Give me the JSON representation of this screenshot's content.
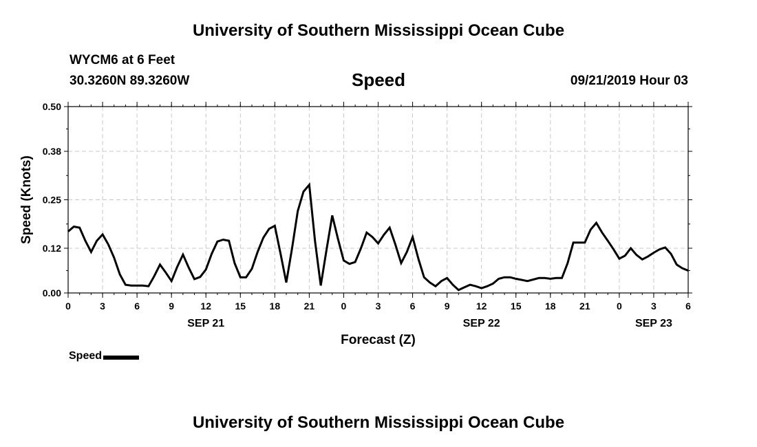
{
  "header": {
    "title": "University of Southern Mississippi Ocean Cube",
    "station": "WYCM6 at 6 Feet",
    "coords": "30.3260N 89.3260W",
    "variable": "Speed",
    "datetime": "09/21/2019 Hour 03"
  },
  "footer": {
    "title": "University of Southern Mississippi Ocean Cube"
  },
  "chart_data": {
    "type": "line",
    "title": "Speed",
    "xlabel": "Forecast (Z)",
    "ylabel": "Speed (Knots)",
    "ylim": [
      0,
      0.5
    ],
    "yticks": [
      "0.00",
      "0.12",
      "0.25",
      "0.38",
      "0.50"
    ],
    "xlim": [
      0,
      54
    ],
    "xticks": [
      {
        "x": 0,
        "label": "0"
      },
      {
        "x": 3,
        "label": "3"
      },
      {
        "x": 6,
        "label": "6"
      },
      {
        "x": 9,
        "label": "9"
      },
      {
        "x": 12,
        "label": "12"
      },
      {
        "x": 15,
        "label": "15"
      },
      {
        "x": 18,
        "label": "18"
      },
      {
        "x": 21,
        "label": "21"
      },
      {
        "x": 24,
        "label": "0"
      },
      {
        "x": 27,
        "label": "3"
      },
      {
        "x": 30,
        "label": "6"
      },
      {
        "x": 33,
        "label": "9"
      },
      {
        "x": 36,
        "label": "12"
      },
      {
        "x": 39,
        "label": "15"
      },
      {
        "x": 42,
        "label": "18"
      },
      {
        "x": 45,
        "label": "21"
      },
      {
        "x": 48,
        "label": "0"
      },
      {
        "x": 51,
        "label": "3"
      },
      {
        "x": 54,
        "label": "6"
      }
    ],
    "date_labels": [
      {
        "x": 12,
        "label": "SEP 21"
      },
      {
        "x": 36,
        "label": "SEP 22"
      },
      {
        "x": 51,
        "label": "SEP 23"
      }
    ],
    "grid": true,
    "series": [
      {
        "name": "Speed",
        "color": "#000000",
        "x": [
          0,
          0.5,
          1,
          1.5,
          2,
          2.5,
          3,
          3.5,
          4,
          4.5,
          5,
          5.5,
          6,
          6.5,
          7,
          7.5,
          8,
          8.5,
          9,
          9.5,
          10,
          10.5,
          11,
          11.5,
          12,
          12.5,
          13,
          13.5,
          14,
          14.5,
          15,
          15.5,
          16,
          16.5,
          17,
          17.5,
          18,
          18.5,
          19,
          19.5,
          20,
          20.5,
          21,
          21.5,
          22,
          22.5,
          23,
          23.5,
          24,
          24.5,
          25,
          25.5,
          26,
          26.5,
          27,
          27.5,
          28,
          28.5,
          29,
          29.5,
          30,
          30.5,
          31,
          31.5,
          32,
          32.5,
          33,
          33.5,
          34,
          34.5,
          35,
          35.5,
          36,
          36.5,
          37,
          37.5,
          38,
          38.5,
          39,
          39.5,
          40,
          40.5,
          41,
          41.5,
          42,
          42.5,
          43,
          43.5,
          44,
          44.5,
          45,
          45.5,
          46,
          46.5,
          47,
          47.5,
          48,
          48.5,
          49,
          49.5,
          50,
          50.5,
          51,
          51.5,
          52,
          52.5,
          53,
          53.5,
          54
        ],
        "values": [
          0.165,
          0.178,
          0.175,
          0.14,
          0.11,
          0.14,
          0.157,
          0.13,
          0.095,
          0.05,
          0.022,
          0.02,
          0.02,
          0.02,
          0.018,
          0.045,
          0.076,
          0.055,
          0.032,
          0.07,
          0.103,
          0.068,
          0.037,
          0.043,
          0.063,
          0.105,
          0.138,
          0.143,
          0.14,
          0.08,
          0.042,
          0.042,
          0.065,
          0.11,
          0.148,
          0.172,
          0.18,
          0.105,
          0.028,
          0.12,
          0.22,
          0.272,
          0.29,
          0.14,
          0.02,
          0.115,
          0.208,
          0.145,
          0.087,
          0.078,
          0.083,
          0.12,
          0.162,
          0.15,
          0.133,
          0.156,
          0.175,
          0.13,
          0.08,
          0.11,
          0.15,
          0.092,
          0.042,
          0.028,
          0.018,
          0.032,
          0.04,
          0.022,
          0.008,
          0.015,
          0.022,
          0.018,
          0.013,
          0.018,
          0.025,
          0.038,
          0.042,
          0.042,
          0.038,
          0.035,
          0.032,
          0.036,
          0.04,
          0.04,
          0.038,
          0.04,
          0.04,
          0.08,
          0.135,
          0.135,
          0.135,
          0.17,
          0.188,
          0.162,
          0.14,
          0.117,
          0.092,
          0.1,
          0.12,
          0.102,
          0.09,
          0.098,
          0.108,
          0.117,
          0.122,
          0.105,
          0.076,
          0.066,
          0.06
        ]
      }
    ],
    "legend": {
      "label": "Speed",
      "placement": "bottom-left"
    }
  }
}
